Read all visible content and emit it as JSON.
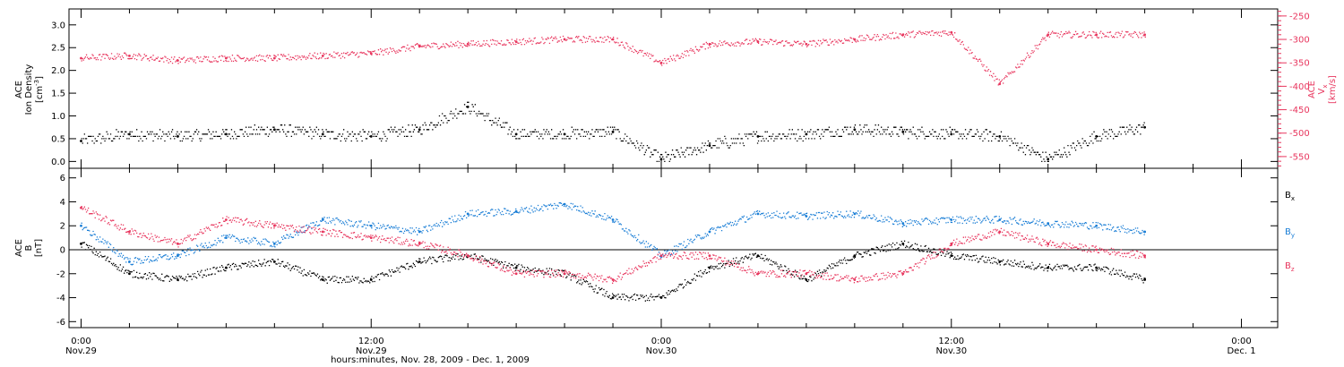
{
  "colors": {
    "density": "#000000",
    "velocity": "#e8365e",
    "bx": "#000000",
    "by": "#1a7ed6",
    "bz": "#e8365e"
  },
  "chart_data": [
    {
      "type": "scatter",
      "ylabel_left": {
        "line1": "ACE",
        "line2": "Ion Density",
        "unit_base": "[cm",
        "unit_sup": "-3",
        "unit_end": "]"
      },
      "ylabel_right": {
        "main": "V",
        "sub": "x",
        "line2": "ACE",
        "unit": "[km/s]"
      },
      "ylim": [
        -0.15,
        3.35
      ],
      "y2lim": [
        -575,
        -235
      ],
      "y_ticks": [
        {
          "value": 0,
          "label": "0.0"
        },
        {
          "value": 0.5,
          "label": "0.5"
        },
        {
          "value": 1,
          "label": "1.0"
        },
        {
          "value": 1.5,
          "label": "1.5"
        },
        {
          "value": 2,
          "label": "2.0"
        },
        {
          "value": 2.5,
          "label": "2.5"
        },
        {
          "value": 3,
          "label": "3.0"
        }
      ],
      "y2_ticks": [
        {
          "value": -550,
          "label": "-550"
        },
        {
          "value": -500,
          "label": "-500"
        },
        {
          "value": -450,
          "label": "-450"
        },
        {
          "value": -400,
          "label": "-400"
        },
        {
          "value": -350,
          "label": "-350"
        },
        {
          "value": -300,
          "label": "-300"
        },
        {
          "value": -250,
          "label": "-250"
        }
      ],
      "x": [
        0,
        2,
        4,
        6,
        8,
        10,
        12,
        14,
        16,
        18,
        20,
        22,
        24,
        26,
        28,
        30,
        32,
        34,
        36,
        38,
        40,
        42,
        44
      ],
      "series": [
        {
          "values": [
            0.45,
            0.6,
            0.55,
            0.6,
            0.7,
            0.6,
            0.55,
            0.7,
            1.2,
            0.6,
            0.6,
            0.65,
            0.05,
            0.35,
            0.55,
            0.6,
            0.7,
            0.65,
            0.6,
            0.55,
            0.05,
            0.55,
            0.75
          ]
        },
        {
          "values": [
            -340,
            -335,
            -345,
            -340,
            -340,
            -335,
            -330,
            -315,
            -310,
            -305,
            -300,
            -300,
            -350,
            -310,
            -305,
            -310,
            -300,
            -290,
            -285,
            -395,
            -290,
            -290,
            -290
          ]
        }
      ]
    },
    {
      "type": "scatter",
      "ylabel": {
        "line1": "ACE",
        "main": "B",
        "line3": "[nT]"
      },
      "ylim": [
        -6.5,
        6.8
      ],
      "y_ticks": [
        {
          "value": -6,
          "label": "-6"
        },
        {
          "value": -4,
          "label": "-4"
        },
        {
          "value": -2,
          "label": "-2"
        },
        {
          "value": 0,
          "label": "0"
        },
        {
          "value": 2,
          "label": "2"
        },
        {
          "value": 4,
          "label": "4"
        },
        {
          "value": 6,
          "label": "6"
        }
      ],
      "x": [
        0,
        2,
        4,
        6,
        8,
        10,
        12,
        14,
        16,
        18,
        20,
        22,
        24,
        26,
        28,
        30,
        32,
        34,
        36,
        38,
        40,
        42,
        44
      ],
      "series": [
        {
          "name": "B",
          "sub": "x",
          "values": [
            0.5,
            -2.0,
            -2.5,
            -1.5,
            -1.0,
            -2.5,
            -2.5,
            -1.0,
            -0.5,
            -1.5,
            -2.0,
            -4.0,
            -4.0,
            -1.5,
            -0.5,
            -2.5,
            -0.5,
            0.5,
            -0.5,
            -1.0,
            -1.5,
            -1.5,
            -2.5
          ]
        },
        {
          "name": "B",
          "sub": "y",
          "values": [
            2.0,
            -1.0,
            -0.5,
            1.0,
            0.5,
            2.5,
            2.0,
            1.5,
            3.0,
            3.2,
            3.8,
            2.5,
            -0.5,
            1.5,
            3.0,
            2.8,
            3.0,
            2.2,
            2.5,
            2.5,
            2.2,
            2.0,
            1.5
          ]
        },
        {
          "name": "B",
          "sub": "z",
          "values": [
            3.5,
            1.5,
            0.5,
            2.5,
            2.0,
            1.5,
            1.0,
            0.5,
            -0.5,
            -2.0,
            -2.0,
            -2.5,
            -0.5,
            -0.5,
            -2.0,
            -2.0,
            -2.5,
            -2.0,
            0.5,
            1.5,
            0.5,
            0.0,
            -0.5
          ]
        }
      ],
      "legend_placement": "right"
    }
  ],
  "time_axis": {
    "xlim": [
      -0.5,
      49.5
    ],
    "ticks": [
      {
        "value": 0,
        "line1": "0:00",
        "line2": "Nov.29"
      },
      {
        "value": 12,
        "line1": "12:00",
        "line2": "Nov.29"
      },
      {
        "value": 24,
        "line1": "0:00",
        "line2": "Nov.30"
      },
      {
        "value": 36,
        "line1": "12:00",
        "line2": "Nov.30"
      },
      {
        "value": 48,
        "line1": "0:00",
        "line2": "Dec. 1"
      }
    ],
    "minor_step_hours": 2,
    "title": "hours:minutes, Nov. 28, 2009 - Dec. 1, 2009"
  }
}
